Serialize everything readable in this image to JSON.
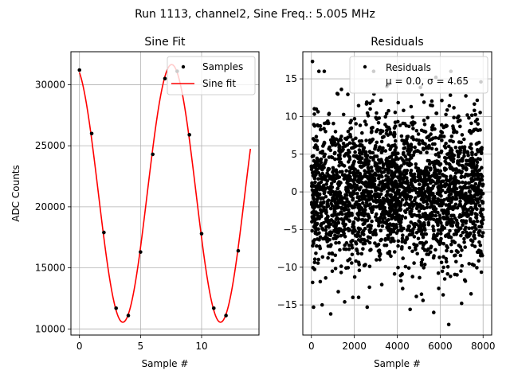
{
  "suptitle": "Run 1113, channel2, Sine Freq.: 5.005 MHz",
  "chart_data": [
    {
      "type": "line",
      "title": "Sine Fit",
      "xlabel": "Sample #",
      "ylabel": "ADC Counts",
      "xlim": [
        -0.7,
        14.7
      ],
      "ylim": [
        9500,
        32700
      ],
      "xticks": [
        0,
        5,
        10
      ],
      "yticks": [
        10000,
        15000,
        20000,
        25000,
        30000
      ],
      "grid": true,
      "legend": {
        "position": "upper right",
        "entries": [
          "Samples",
          "Sine fit"
        ]
      },
      "series": [
        {
          "name": "Samples",
          "style": "scatter",
          "color": "#000000",
          "x": [
            0,
            1,
            2,
            3,
            4,
            5,
            6,
            7,
            8,
            9,
            10,
            11,
            12,
            13
          ],
          "y": [
            31200,
            26000,
            17900,
            11700,
            11100,
            16300,
            24300,
            30500,
            31100,
            25900,
            17800,
            11700,
            11100,
            16400
          ]
        },
        {
          "name": "Sine fit",
          "style": "line",
          "color": "#ff0000",
          "model": {
            "offset": 21100,
            "amplitude": 10550,
            "period": 8.0,
            "peak_x": 7.55,
            "x_range": [
              0,
              14
            ]
          }
        }
      ]
    },
    {
      "type": "scatter",
      "title": "Residuals",
      "xlabel": "Sample #",
      "ylabel": "",
      "xlim": [
        -400,
        8400
      ],
      "ylim": [
        -19,
        18.6
      ],
      "xticks": [
        0,
        2000,
        4000,
        6000,
        8000
      ],
      "yticks": [
        -15,
        -10,
        -5,
        0,
        5,
        10,
        15
      ],
      "grid": true,
      "legend": {
        "position": "upper right",
        "entries": [
          "Residuals",
          "μ = 0.0, σ = 4.65"
        ]
      },
      "series": [
        {
          "name": "Residuals",
          "color": "#000000",
          "x_range": [
            0,
            8000
          ],
          "mean": 0.0,
          "std": 4.65,
          "count": 2600,
          "outliers": [
            {
              "x": 50,
              "y": 17.3
            },
            {
              "x": 350,
              "y": 16.0
            },
            {
              "x": 600,
              "y": 16.0
            },
            {
              "x": 2900,
              "y": 16.0
            },
            {
              "x": 6500,
              "y": 16.0
            },
            {
              "x": 5800,
              "y": 15.2
            },
            {
              "x": 6400,
              "y": -17.6
            },
            {
              "x": 5700,
              "y": -16.0
            },
            {
              "x": 900,
              "y": -16.2
            },
            {
              "x": 100,
              "y": -15.3
            },
            {
              "x": 500,
              "y": -15.0
            },
            {
              "x": 1550,
              "y": -14.6
            },
            {
              "x": 4600,
              "y": -15.6
            },
            {
              "x": 5200,
              "y": -14.4
            },
            {
              "x": 2200,
              "y": -14.0
            },
            {
              "x": 7000,
              "y": -14.8
            },
            {
              "x": 2600,
              "y": -15.3
            },
            {
              "x": 7900,
              "y": 14.6
            },
            {
              "x": 1400,
              "y": 13.6
            },
            {
              "x": 3600,
              "y": 14.3
            }
          ]
        }
      ]
    }
  ]
}
